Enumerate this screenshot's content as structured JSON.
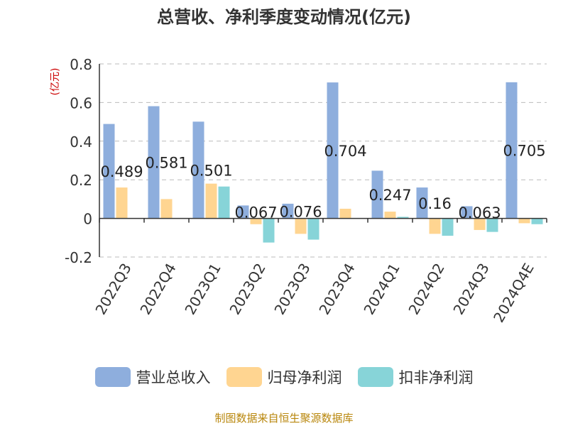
{
  "chart_data": {
    "type": "bar",
    "title": "总营收、净利季度变动情况(亿元)",
    "ylabel": "(亿元)",
    "ylim": [
      -0.2,
      0.8
    ],
    "yticks": [
      -0.2,
      0,
      0.2,
      0.4,
      0.6,
      0.8
    ],
    "ytick_labels": [
      "-0.2",
      "0",
      "0.2",
      "0.4",
      "0.6",
      "0.8"
    ],
    "grid": true,
    "legend_position": "bottom",
    "categories": [
      "2022Q3",
      "2022Q4",
      "2023Q1",
      "2023Q2",
      "2023Q3",
      "2023Q4",
      "2024Q1",
      "2024Q2",
      "2024Q3",
      "2024Q4E"
    ],
    "series": [
      {
        "name": "营业总收入",
        "color": "#8eaedd",
        "values": [
          0.489,
          0.581,
          0.501,
          0.067,
          0.076,
          0.704,
          0.247,
          0.16,
          0.063,
          0.705
        ],
        "data_labels": [
          "0.489",
          "0.581",
          "0.501",
          "0.067",
          "0.076",
          "0.704",
          "0.247",
          "0.16",
          "0.063",
          "0.705"
        ]
      },
      {
        "name": "归母净利润",
        "color": "#ffd591",
        "values": [
          0.16,
          0.1,
          0.18,
          -0.03,
          -0.08,
          0.05,
          0.035,
          -0.08,
          -0.06,
          -0.025
        ]
      },
      {
        "name": "扣非净利润",
        "color": "#87d4d8",
        "values": [
          0,
          0,
          0.165,
          -0.125,
          -0.11,
          0,
          0.008,
          -0.09,
          -0.07,
          -0.03
        ]
      }
    ]
  },
  "footer": {
    "source": "制图数据来自恒生聚源数据库"
  }
}
